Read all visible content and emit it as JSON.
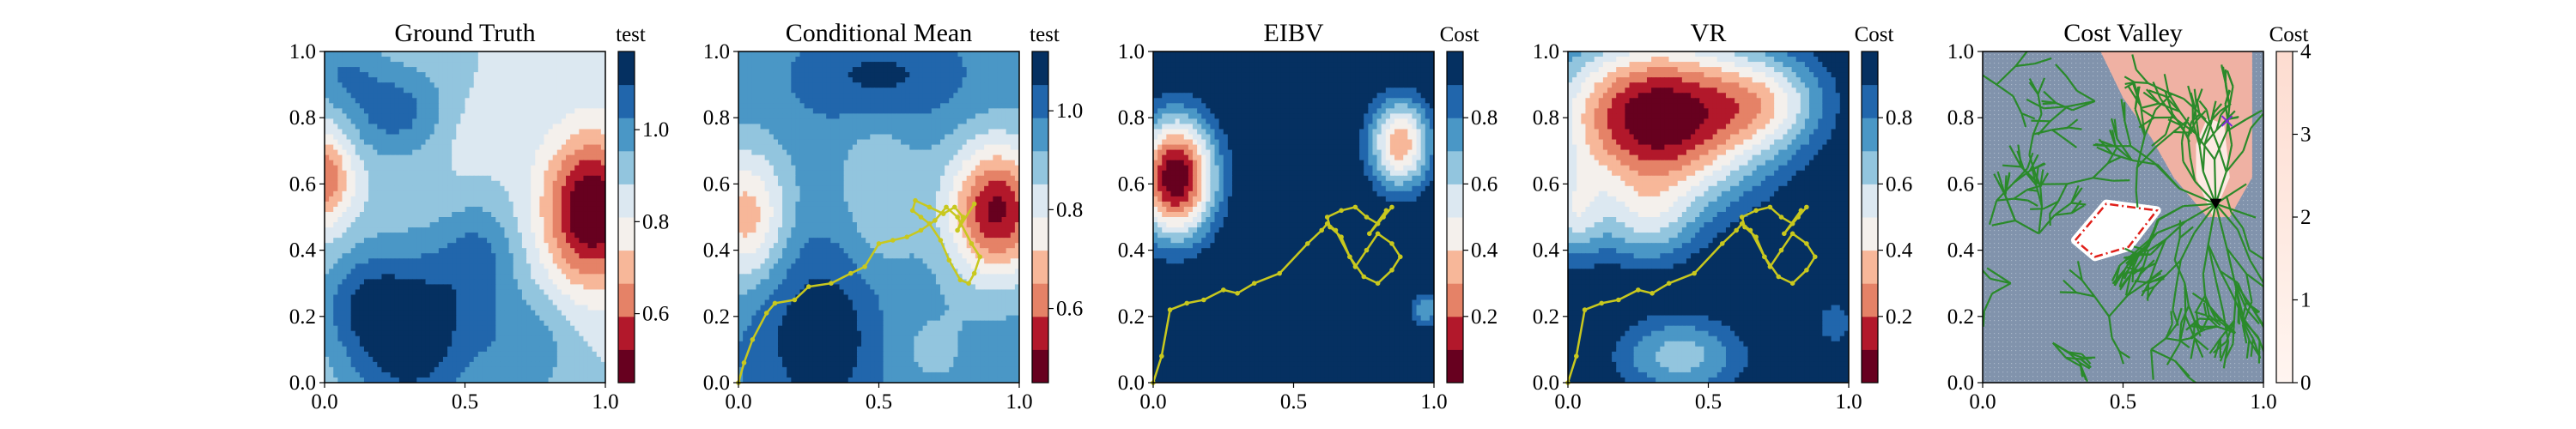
{
  "chart_data": [
    {
      "type": "heatmap",
      "title": "Ground Truth",
      "colorbar_label": "test",
      "colormap": "RdBu",
      "xlim": [
        0,
        1
      ],
      "ylim": [
        0,
        1
      ],
      "xticks": [
        "0.0",
        "0.5",
        "1.0"
      ],
      "yticks": [
        "0.0",
        "0.2",
        "0.4",
        "0.6",
        "0.8",
        "1.0"
      ],
      "colorbar": {
        "min": 0.45,
        "max": 1.17,
        "ticks": [
          0.6,
          0.8,
          1.0
        ],
        "tick_labels": [
          "0.6",
          "0.8",
          "1.0"
        ],
        "levels": 10
      },
      "field": {
        "base": 0.88,
        "bumps": [
          {
            "x": 0.95,
            "y": 0.52,
            "amp": -0.45,
            "sx": 0.12,
            "sy": 0.16
          },
          {
            "x": 0.0,
            "y": 0.62,
            "amp": -0.28,
            "sx": 0.07,
            "sy": 0.1
          },
          {
            "x": 0.3,
            "y": 0.15,
            "amp": 0.3,
            "sx": 0.17,
            "sy": 0.18
          },
          {
            "x": 0.55,
            "y": 0.38,
            "amp": 0.14,
            "sx": 0.1,
            "sy": 0.12
          },
          {
            "x": 0.72,
            "y": 0.1,
            "amp": 0.12,
            "sx": 0.12,
            "sy": 0.12
          },
          {
            "x": 0.12,
            "y": 0.25,
            "amp": 0.1,
            "sx": 0.1,
            "sy": 0.1
          },
          {
            "x": 0.25,
            "y": 0.82,
            "amp": 0.18,
            "sx": 0.14,
            "sy": 0.1
          },
          {
            "x": 0.05,
            "y": 0.95,
            "amp": 0.12,
            "sx": 0.1,
            "sy": 0.08
          },
          {
            "x": 0.52,
            "y": 0.75,
            "amp": -0.05,
            "sx": 0.1,
            "sy": 0.1
          }
        ]
      }
    },
    {
      "type": "heatmap",
      "title": "Conditional Mean",
      "colorbar_label": "test",
      "colormap": "RdBu",
      "xlim": [
        0,
        1
      ],
      "ylim": [
        0,
        1
      ],
      "xticks": [
        "0.0",
        "0.5",
        "1.0"
      ],
      "yticks": [
        "0.0",
        "0.2",
        "0.4",
        "0.6",
        "0.8",
        "1.0"
      ],
      "colorbar": {
        "min": 0.45,
        "max": 1.12,
        "ticks": [
          0.6,
          0.8,
          1.0
        ],
        "tick_labels": [
          "0.6",
          "0.8",
          "1.0"
        ],
        "levels": 10
      },
      "field": {
        "base": 0.95,
        "bumps": [
          {
            "x": 0.92,
            "y": 0.52,
            "amp": -0.45,
            "sx": 0.12,
            "sy": 0.14
          },
          {
            "x": 0.03,
            "y": 0.5,
            "amp": -0.27,
            "sx": 0.1,
            "sy": 0.14
          },
          {
            "x": 0.3,
            "y": 0.15,
            "amp": 0.16,
            "sx": 0.18,
            "sy": 0.2
          },
          {
            "x": 0.5,
            "y": 0.92,
            "amp": 0.13,
            "sx": 0.2,
            "sy": 0.1
          },
          {
            "x": 0.5,
            "y": 0.55,
            "amp": -0.1,
            "sx": 0.1,
            "sy": 0.2
          },
          {
            "x": 0.65,
            "y": 0.1,
            "amp": -0.06,
            "sx": 0.12,
            "sy": 0.1
          }
        ]
      },
      "path": {
        "color": "#c8c81e",
        "x": [
          0.0,
          0.02,
          0.05,
          0.1,
          0.13,
          0.2,
          0.25,
          0.33,
          0.4,
          0.45,
          0.5,
          0.55,
          0.6,
          0.65,
          0.7,
          0.74,
          0.78,
          0.83,
          0.86,
          0.84,
          0.82,
          0.79,
          0.75,
          0.72,
          0.68,
          0.65,
          0.62,
          0.63,
          0.68,
          0.73,
          0.77,
          0.8,
          0.78,
          0.84
        ],
        "y": [
          0.0,
          0.06,
          0.13,
          0.21,
          0.24,
          0.25,
          0.29,
          0.3,
          0.33,
          0.35,
          0.42,
          0.43,
          0.44,
          0.46,
          0.49,
          0.53,
          0.5,
          0.42,
          0.38,
          0.33,
          0.3,
          0.31,
          0.37,
          0.43,
          0.48,
          0.5,
          0.52,
          0.55,
          0.53,
          0.51,
          0.53,
          0.5,
          0.46,
          0.54
        ]
      }
    },
    {
      "type": "heatmap",
      "title": "EIBV",
      "colorbar_label": "Cost",
      "colormap": "RdBu",
      "xlim": [
        0,
        1
      ],
      "ylim": [
        0,
        1
      ],
      "xticks": [
        "0.0",
        "0.5",
        "1.0"
      ],
      "yticks": [
        "0.0",
        "0.2",
        "0.4",
        "0.6",
        "0.8",
        "1.0"
      ],
      "colorbar": {
        "min": 0.0,
        "max": 1.0,
        "ticks": [
          0.2,
          0.4,
          0.6,
          0.8
        ],
        "tick_labels": [
          "0.2",
          "0.4",
          "0.6",
          "0.8"
        ],
        "levels": 10
      },
      "field": {
        "base": 1.05,
        "bumps": [
          {
            "x": 0.08,
            "y": 0.62,
            "amp": -1.05,
            "sx": 0.1,
            "sy": 0.13
          },
          {
            "x": 0.88,
            "y": 0.72,
            "amp": -0.72,
            "sx": 0.08,
            "sy": 0.1
          },
          {
            "x": 0.97,
            "y": 0.22,
            "amp": -0.35,
            "sx": 0.04,
            "sy": 0.04
          },
          {
            "x": 0.42,
            "y": 0.7,
            "amp": -0.05,
            "sx": 0.1,
            "sy": 0.1
          }
        ]
      },
      "path": {
        "color": "#c8c81e",
        "x": [
          0.0,
          0.03,
          0.06,
          0.12,
          0.18,
          0.25,
          0.3,
          0.36,
          0.45,
          0.55,
          0.6,
          0.62,
          0.65,
          0.7,
          0.75,
          0.8,
          0.85,
          0.88,
          0.85,
          0.8,
          0.76,
          0.72,
          0.7,
          0.67,
          0.63,
          0.62,
          0.67,
          0.72,
          0.76,
          0.8,
          0.83,
          0.77,
          0.82,
          0.85
        ],
        "y": [
          0.0,
          0.08,
          0.22,
          0.24,
          0.25,
          0.28,
          0.27,
          0.3,
          0.33,
          0.42,
          0.46,
          0.48,
          0.46,
          0.38,
          0.32,
          0.3,
          0.34,
          0.38,
          0.42,
          0.45,
          0.4,
          0.35,
          0.38,
          0.44,
          0.47,
          0.5,
          0.52,
          0.53,
          0.5,
          0.48,
          0.52,
          0.45,
          0.5,
          0.53
        ]
      }
    },
    {
      "type": "heatmap",
      "title": "VR",
      "colorbar_label": "Cost",
      "colormap": "RdBu",
      "xlim": [
        0,
        1
      ],
      "ylim": [
        0,
        1
      ],
      "xticks": [
        "0.0",
        "0.5",
        "1.0"
      ],
      "yticks": [
        "0.0",
        "0.2",
        "0.4",
        "0.6",
        "0.8",
        "1.0"
      ],
      "colorbar": {
        "min": 0.0,
        "max": 1.0,
        "ticks": [
          0.2,
          0.4,
          0.6,
          0.8
        ],
        "tick_labels": [
          "0.2",
          "0.4",
          "0.6",
          "0.8"
        ],
        "levels": 10
      },
      "field": {
        "base": 1.05,
        "bumps": [
          {
            "x": 0.32,
            "y": 0.8,
            "amp": -1.05,
            "sx": 0.27,
            "sy": 0.18
          },
          {
            "x": 0.72,
            "y": 0.85,
            "amp": -0.35,
            "sx": 0.15,
            "sy": 0.1
          },
          {
            "x": 0.02,
            "y": 0.5,
            "amp": -0.35,
            "sx": 0.07,
            "sy": 0.1
          },
          {
            "x": 0.4,
            "y": 0.08,
            "amp": -0.4,
            "sx": 0.17,
            "sy": 0.09
          },
          {
            "x": 0.28,
            "y": 0.48,
            "amp": -0.3,
            "sx": 0.13,
            "sy": 0.1
          },
          {
            "x": 0.95,
            "y": 0.18,
            "amp": -0.18,
            "sx": 0.08,
            "sy": 0.08
          }
        ]
      },
      "path": {
        "color": "#c8c81e",
        "x": [
          0.0,
          0.03,
          0.06,
          0.12,
          0.18,
          0.25,
          0.3,
          0.36,
          0.45,
          0.55,
          0.6,
          0.62,
          0.65,
          0.7,
          0.75,
          0.8,
          0.85,
          0.88,
          0.85,
          0.8,
          0.76,
          0.72,
          0.7,
          0.67,
          0.63,
          0.62,
          0.67,
          0.72,
          0.76,
          0.8,
          0.83,
          0.77,
          0.82,
          0.85
        ],
        "y": [
          0.0,
          0.08,
          0.22,
          0.24,
          0.25,
          0.28,
          0.27,
          0.3,
          0.33,
          0.42,
          0.46,
          0.48,
          0.46,
          0.38,
          0.32,
          0.3,
          0.34,
          0.38,
          0.42,
          0.45,
          0.4,
          0.35,
          0.38,
          0.44,
          0.47,
          0.5,
          0.52,
          0.53,
          0.5,
          0.48,
          0.52,
          0.45,
          0.5,
          0.53
        ]
      }
    },
    {
      "type": "heatmap",
      "title": "Cost Valley",
      "colorbar_label": "Cost",
      "colormap": "Reds",
      "xlim": [
        0,
        1
      ],
      "ylim": [
        0,
        1
      ],
      "xticks": [
        "0.0",
        "0.5",
        "1.0"
      ],
      "yticks": [
        "0.0",
        "0.2",
        "0.4",
        "0.6",
        "0.8",
        "1.0"
      ],
      "colorbar": {
        "min": 0,
        "max": 4,
        "ticks": [
          0,
          1,
          2,
          3,
          4
        ],
        "tick_labels": [
          "0",
          "1",
          "2",
          "3",
          "4"
        ],
        "levels": 1
      },
      "regions": {
        "background_color": "#8193ac",
        "high_cost_color": "#efb1a3",
        "valley_color": "#fde9e3",
        "obstacle_color": "#ffffff",
        "obstacle_edge_color": "#e0201a",
        "obstacle_polygon": [
          [
            0.33,
            0.43
          ],
          [
            0.44,
            0.54
          ],
          [
            0.62,
            0.52
          ],
          [
            0.52,
            0.41
          ],
          [
            0.4,
            0.38
          ]
        ],
        "marker_current": {
          "x": 0.83,
          "y": 0.54,
          "color": "#000000"
        },
        "marker_goal": {
          "x": 0.87,
          "y": 0.79,
          "color": "#7b2ad8"
        }
      },
      "tree": {
        "color": "#2a8a2a",
        "root": [
          0.83,
          0.54
        ]
      }
    }
  ]
}
